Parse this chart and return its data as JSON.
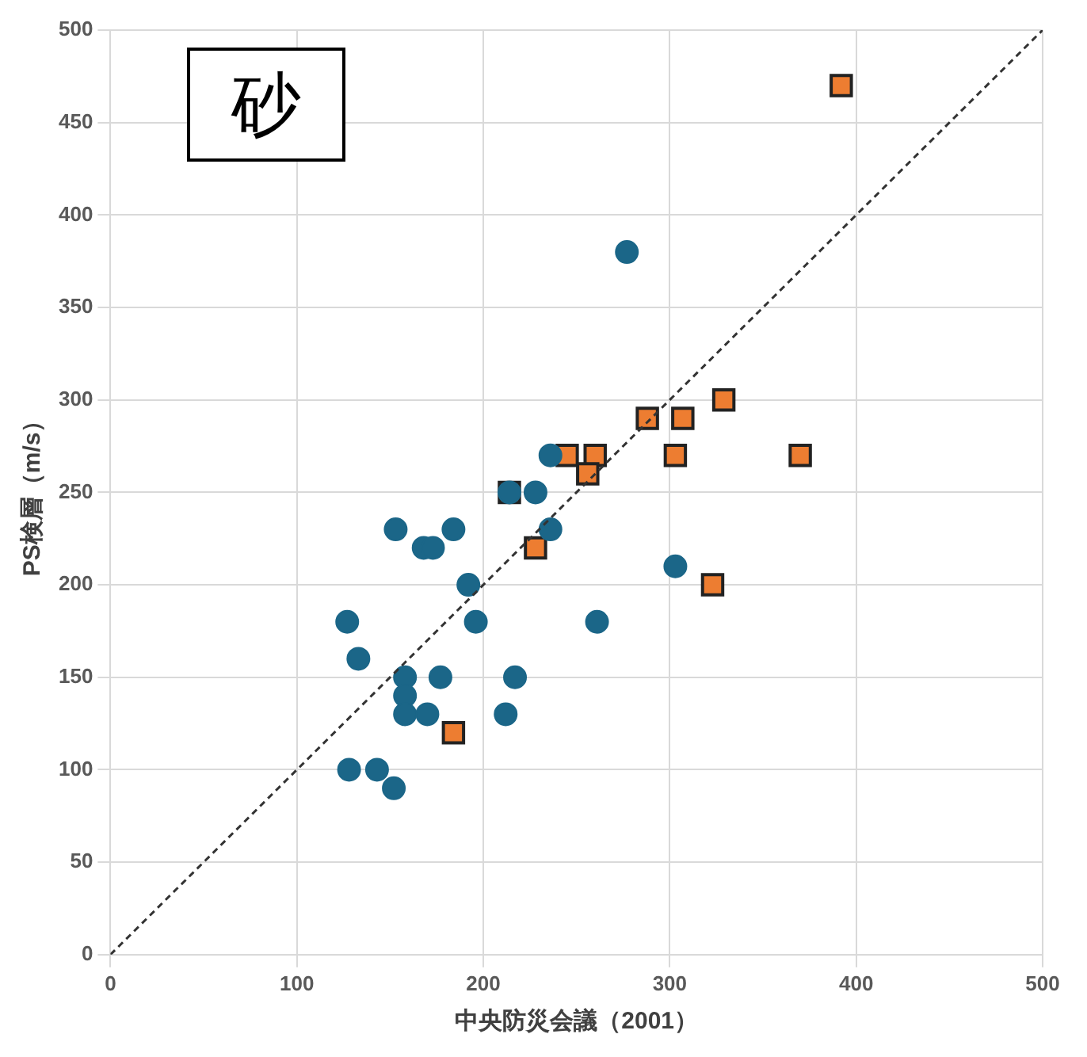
{
  "chart_data": {
    "type": "scatter",
    "title": "砂",
    "xlabel": "中央防災会議（2001）",
    "ylabel": "PS検層（m/s）",
    "xlim": [
      0,
      500
    ],
    "ylim": [
      0,
      500
    ],
    "xticks": [
      0,
      100,
      200,
      300,
      400,
      500
    ],
    "yticks": [
      0,
      50,
      100,
      150,
      200,
      250,
      300,
      350,
      400,
      450,
      500
    ],
    "grid": true,
    "legend": false,
    "series": [
      {
        "marker": "circle",
        "color": "#1b6688",
        "x": [
          127,
          133,
          153,
          168,
          173,
          184,
          192,
          196,
          158,
          158,
          158,
          170,
          177,
          212,
          217,
          128,
          143,
          152,
          277,
          236,
          214,
          228,
          236,
          303,
          261
        ],
        "values": [
          180,
          160,
          230,
          220,
          220,
          230,
          200,
          180,
          150,
          140,
          130,
          130,
          150,
          130,
          150,
          100,
          100,
          90,
          380,
          270,
          250,
          250,
          230,
          210,
          180
        ]
      },
      {
        "marker": "square",
        "color": "#ed7d31",
        "x": [
          392,
          184,
          214,
          228,
          245,
          260,
          256,
          288,
          307,
          329,
          303,
          370,
          323
        ],
        "values": [
          470,
          120,
          250,
          220,
          270,
          270,
          260,
          290,
          290,
          300,
          270,
          270,
          200
        ]
      },
      {
        "type": "line",
        "marker": "none",
        "line_style": "dashed",
        "color": "#333333",
        "x": [
          0,
          500
        ],
        "values": [
          0,
          500
        ]
      }
    ]
  }
}
